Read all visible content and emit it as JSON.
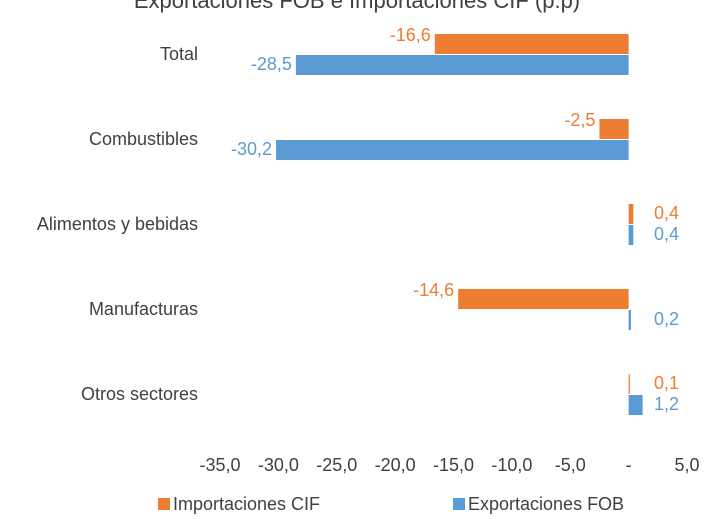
{
  "chart_data": {
    "type": "hbar",
    "title": "Exportaciones FOB e Importaciones CIF (p.p)",
    "categories": [
      "Total",
      "Combustibles",
      "Alimentos y bebidas",
      "Manufacturas",
      "Otros sectores"
    ],
    "series": [
      {
        "name": "Importaciones CIF",
        "color": "#ed7d31",
        "values": [
          -16.6,
          -2.5,
          0.4,
          -14.6,
          0.1
        ],
        "value_labels": [
          "-16,6",
          "-2,5",
          "0,4",
          "-14,6",
          "0,1"
        ]
      },
      {
        "name": "Exportaciones FOB",
        "color": "#5b9bd5",
        "values": [
          -28.5,
          -30.2,
          0.4,
          0.2,
          1.2
        ],
        "value_labels": [
          "-28,5",
          "-30,2",
          "0,4",
          "0,2",
          "1,2"
        ]
      }
    ],
    "xlim": [
      -35,
      5
    ],
    "xticks": [
      {
        "value": -35,
        "label": "-35,0"
      },
      {
        "value": -30,
        "label": "-30,0"
      },
      {
        "value": -25,
        "label": "-25,0"
      },
      {
        "value": -20,
        "label": "-20,0"
      },
      {
        "value": -15,
        "label": "-15,0"
      },
      {
        "value": -10,
        "label": "-10,0"
      },
      {
        "value": -5,
        "label": "-5,0"
      },
      {
        "value": 0,
        "label": "-"
      },
      {
        "value": 5,
        "label": "5,0"
      }
    ],
    "legend": "bottom"
  }
}
